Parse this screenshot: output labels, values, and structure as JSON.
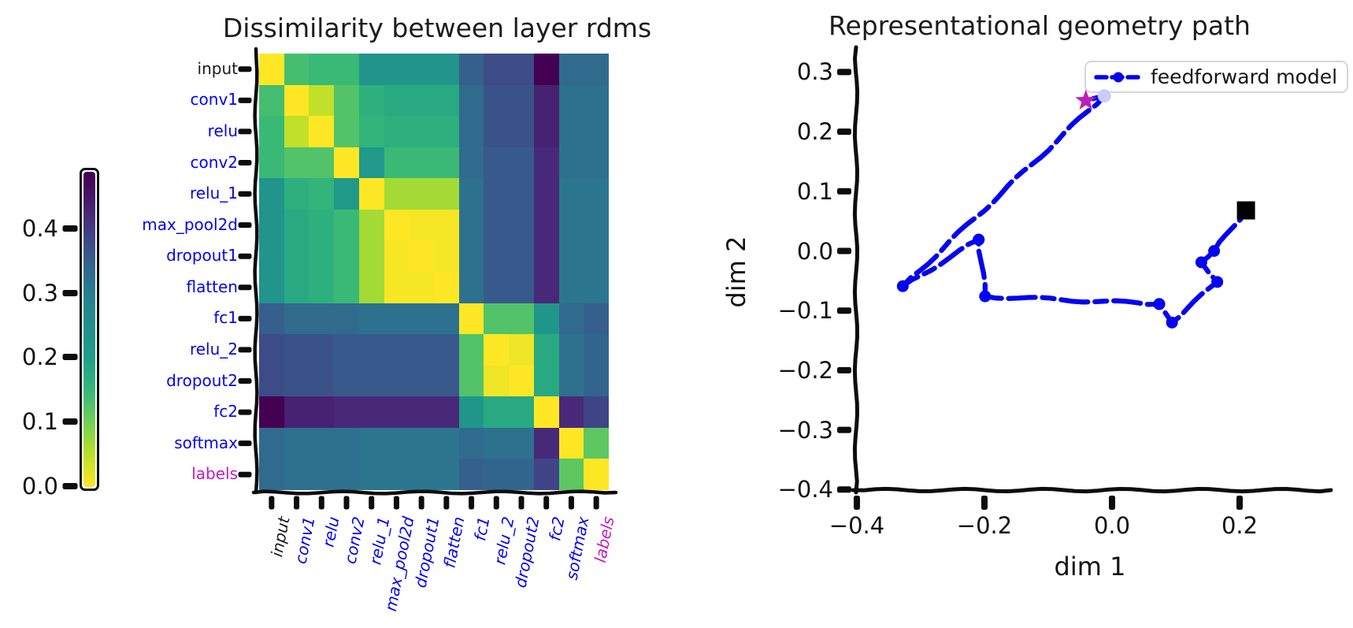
{
  "figure_background": "#ffffff",
  "chart_data": [
    {
      "type": "heatmap",
      "title": "Dissimilarity between layer rdms",
      "categories": [
        "input",
        "conv1",
        "relu",
        "conv2",
        "relu_1",
        "max_pool2d",
        "dropout1",
        "flatten",
        "fc1",
        "relu_2",
        "dropout2",
        "fc2",
        "softmax",
        "labels"
      ],
      "label_colors": [
        "#1a1a1a",
        "#0404f0",
        "#0404f0",
        "#0404f0",
        "#0404f0",
        "#0404f0",
        "#0404f0",
        "#0404f0",
        "#0404f0",
        "#0404f0",
        "#0404f0",
        "#0404f0",
        "#0404f0",
        "#c319c3"
      ],
      "colormap": "viridis_reversed",
      "vmin": 0.0,
      "vmax": 0.48,
      "matrix": [
        [
          0.0,
          0.13,
          0.14,
          0.14,
          0.23,
          0.23,
          0.23,
          0.23,
          0.35,
          0.38,
          0.38,
          0.48,
          0.33,
          0.33
        ],
        [
          0.13,
          0.0,
          0.04,
          0.12,
          0.16,
          0.17,
          0.17,
          0.17,
          0.33,
          0.37,
          0.37,
          0.44,
          0.32,
          0.32
        ],
        [
          0.14,
          0.04,
          0.0,
          0.12,
          0.15,
          0.16,
          0.16,
          0.16,
          0.33,
          0.37,
          0.37,
          0.44,
          0.32,
          0.32
        ],
        [
          0.14,
          0.12,
          0.12,
          0.0,
          0.21,
          0.14,
          0.14,
          0.14,
          0.33,
          0.36,
          0.36,
          0.43,
          0.32,
          0.32
        ],
        [
          0.23,
          0.16,
          0.15,
          0.21,
          0.0,
          0.06,
          0.06,
          0.06,
          0.32,
          0.36,
          0.36,
          0.43,
          0.31,
          0.31
        ],
        [
          0.23,
          0.17,
          0.16,
          0.14,
          0.06,
          0.0,
          0.005,
          0.005,
          0.32,
          0.36,
          0.36,
          0.43,
          0.31,
          0.31
        ],
        [
          0.23,
          0.17,
          0.16,
          0.14,
          0.06,
          0.005,
          0.0,
          0.005,
          0.32,
          0.36,
          0.36,
          0.43,
          0.31,
          0.31
        ],
        [
          0.23,
          0.17,
          0.16,
          0.14,
          0.06,
          0.005,
          0.005,
          0.0,
          0.32,
          0.36,
          0.36,
          0.43,
          0.31,
          0.31
        ],
        [
          0.35,
          0.33,
          0.33,
          0.33,
          0.32,
          0.32,
          0.32,
          0.32,
          0.0,
          0.12,
          0.12,
          0.22,
          0.33,
          0.35
        ],
        [
          0.38,
          0.37,
          0.37,
          0.36,
          0.36,
          0.36,
          0.36,
          0.36,
          0.12,
          0.0,
          0.01,
          0.17,
          0.32,
          0.34
        ],
        [
          0.38,
          0.37,
          0.37,
          0.36,
          0.36,
          0.36,
          0.36,
          0.36,
          0.12,
          0.01,
          0.0,
          0.17,
          0.32,
          0.34
        ],
        [
          0.48,
          0.44,
          0.44,
          0.43,
          0.43,
          0.43,
          0.43,
          0.43,
          0.22,
          0.17,
          0.17,
          0.0,
          0.43,
          0.39
        ],
        [
          0.33,
          0.32,
          0.32,
          0.32,
          0.31,
          0.31,
          0.31,
          0.31,
          0.33,
          0.32,
          0.32,
          0.43,
          0.0,
          0.11
        ],
        [
          0.33,
          0.32,
          0.32,
          0.32,
          0.31,
          0.31,
          0.31,
          0.31,
          0.35,
          0.34,
          0.34,
          0.39,
          0.11,
          0.0
        ]
      ],
      "colorbar": {
        "tick_labels": [
          "0.4",
          "0.3",
          "0.2",
          "0.1",
          "0.0"
        ],
        "tick_values": [
          0.4,
          0.3,
          0.2,
          0.1,
          0.0
        ],
        "range": [
          0.0,
          0.49
        ]
      }
    },
    {
      "type": "line",
      "title": "Representational geometry path",
      "xlabel": "dim 1",
      "ylabel": "dim 2",
      "xlim": [
        -0.4,
        0.33
      ],
      "ylim": [
        -0.4,
        0.34
      ],
      "xtick_values": [
        -0.4,
        -0.2,
        0.0,
        0.2
      ],
      "xtick_labels": [
        "−0.4",
        "−0.2",
        "0.0",
        "0.2"
      ],
      "ytick_values": [
        0.3,
        0.2,
        0.1,
        0.0,
        -0.1,
        -0.2,
        -0.3,
        -0.4
      ],
      "ytick_labels": [
        "0.3",
        "0.2",
        "0.1",
        "0.0",
        "−0.1",
        "−0.2",
        "−0.3",
        "−0.4"
      ],
      "legend": {
        "label": "feedforward model",
        "position": "upper right"
      },
      "line_color": "#0404f0",
      "line_style": "dashed",
      "marker_colors": {
        "dot": "#0404f0",
        "square": "#000000",
        "star": "#bb1fbb",
        "dot_light": "#ccccfa"
      },
      "points": [
        {
          "name": "input",
          "x": 0.21,
          "y": 0.068,
          "marker": "square"
        },
        {
          "name": "conv1",
          "x": 0.16,
          "y": 0.0,
          "marker": "dot"
        },
        {
          "name": "relu",
          "x": 0.14,
          "y": -0.019,
          "marker": "dot"
        },
        {
          "name": "conv2",
          "x": 0.165,
          "y": -0.052,
          "marker": "dot"
        },
        {
          "name": "relu_1",
          "x": 0.094,
          "y": -0.12,
          "marker": "dot"
        },
        {
          "name": "max_pool2d",
          "x": 0.074,
          "y": -0.089,
          "marker": "dot"
        },
        {
          "name": "dropout1",
          "x": 0.074,
          "y": -0.089,
          "marker": "dot"
        },
        {
          "name": "flatten",
          "x": 0.074,
          "y": -0.089,
          "marker": "dot"
        },
        {
          "name": "fc1",
          "x": -0.199,
          "y": -0.076,
          "marker": "dot"
        },
        {
          "name": "relu_2",
          "x": -0.209,
          "y": 0.019,
          "marker": "dot"
        },
        {
          "name": "dropout2",
          "x": -0.209,
          "y": 0.019,
          "marker": "dot"
        },
        {
          "name": "fc2",
          "x": -0.328,
          "y": -0.059,
          "marker": "dot"
        },
        {
          "name": "softmax",
          "x": -0.012,
          "y": 0.26,
          "marker": "dot_light"
        },
        {
          "name": "labels",
          "x": -0.041,
          "y": 0.252,
          "marker": "star"
        }
      ]
    }
  ]
}
